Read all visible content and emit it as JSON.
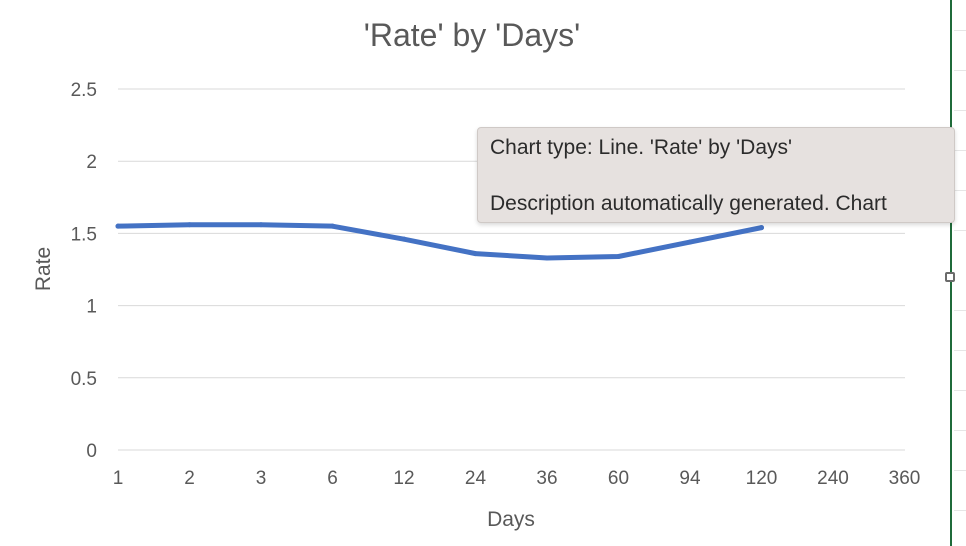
{
  "chart_data": {
    "type": "line",
    "title": "'Rate' by 'Days'",
    "xlabel": "Days",
    "ylabel": "Rate",
    "categories": [
      "1",
      "2",
      "3",
      "6",
      "12",
      "24",
      "36",
      "60",
      "94",
      "120",
      "240",
      "360"
    ],
    "series": [
      {
        "values": [
          1.55,
          1.56,
          1.56,
          1.55,
          1.46,
          1.36,
          1.33,
          1.34,
          1.44,
          1.54,
          null,
          null
        ],
        "color": "#4472c4"
      }
    ],
    "yticks": [
      "0",
      "0.5",
      "1",
      "1.5",
      "2",
      "2.5"
    ],
    "ylim": [
      0,
      2.5
    ],
    "grid": true,
    "legend": "none"
  },
  "tooltip": {
    "line1": "Chart type: Line. 'Rate' by 'Days'",
    "line2": "Description automatically generated. Chart"
  },
  "colors": {
    "series": "#4472c4",
    "grid": "#d9d9d9",
    "text": "#595959",
    "tooltip_bg": "#e6e1df",
    "sheet_boundary": "#1f6b3a"
  },
  "icons": {
    "resize_handle": "resize-handle-icon"
  }
}
